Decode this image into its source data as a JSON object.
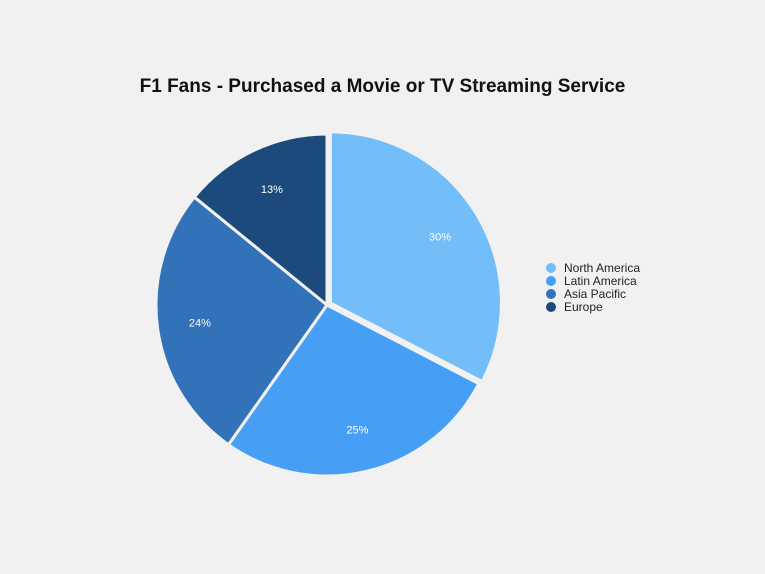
{
  "chart_data": {
    "type": "pie",
    "title": "F1 Fans - Purchased a Movie or TV Streaming Service",
    "categories": [
      "North America",
      "Latin America",
      "Asia Pacific",
      "Europe"
    ],
    "values": [
      30,
      25,
      24,
      13
    ],
    "labels": [
      "30%",
      "25%",
      "24%",
      "13%"
    ],
    "colors": [
      "#73bdf8",
      "#479ef5",
      "#3272b8",
      "#1c4a7c"
    ],
    "exploded": [
      "North America"
    ],
    "legend_position": "right"
  }
}
